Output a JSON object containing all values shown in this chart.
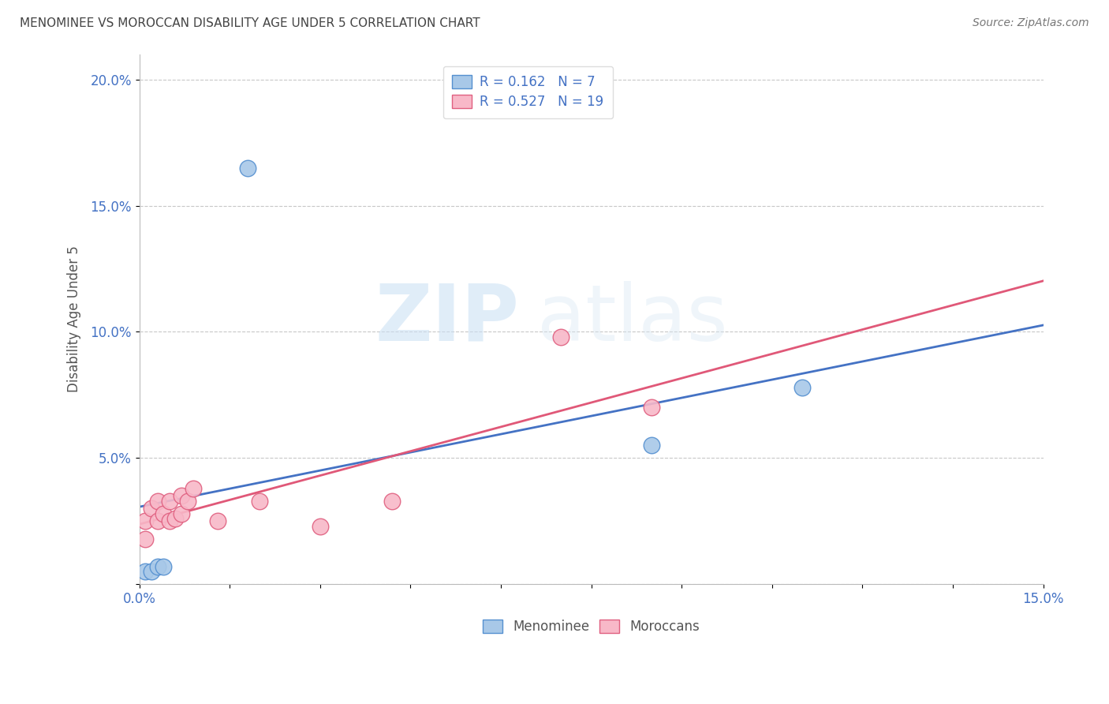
{
  "title": "MENOMINEE VS MOROCCAN DISABILITY AGE UNDER 5 CORRELATION CHART",
  "source": "Source: ZipAtlas.com",
  "ylabel": "Disability Age Under 5",
  "xlim": [
    0.0,
    0.15
  ],
  "ylim": [
    0.0,
    0.21
  ],
  "yticks": [
    0.0,
    0.05,
    0.1,
    0.15,
    0.2
  ],
  "ytick_labels": [
    "",
    "5.0%",
    "10.0%",
    "15.0%",
    "20.0%"
  ],
  "xticks": [
    0.0,
    0.015,
    0.03,
    0.045,
    0.06,
    0.075,
    0.09,
    0.105,
    0.12,
    0.135,
    0.15
  ],
  "xtick_labels": [
    "0.0%",
    "",
    "",
    "",
    "",
    "",
    "",
    "",
    "",
    "",
    "15.0%"
  ],
  "menominee_x": [
    0.001,
    0.002,
    0.003,
    0.004,
    0.018,
    0.085,
    0.11
  ],
  "menominee_y": [
    0.005,
    0.005,
    0.007,
    0.007,
    0.165,
    0.055,
    0.078
  ],
  "moroccan_x": [
    0.001,
    0.001,
    0.002,
    0.003,
    0.003,
    0.004,
    0.005,
    0.005,
    0.006,
    0.007,
    0.007,
    0.008,
    0.009,
    0.013,
    0.02,
    0.03,
    0.042,
    0.07,
    0.085
  ],
  "moroccan_y": [
    0.018,
    0.025,
    0.03,
    0.025,
    0.033,
    0.028,
    0.025,
    0.033,
    0.026,
    0.028,
    0.035,
    0.033,
    0.038,
    0.025,
    0.033,
    0.023,
    0.033,
    0.098,
    0.07
  ],
  "menominee_color": "#a8c8e8",
  "moroccan_color": "#f8b8c8",
  "menominee_edge_color": "#5590d0",
  "moroccan_edge_color": "#e06080",
  "menominee_line_color": "#4472c4",
  "moroccan_line_color": "#e05878",
  "menominee_R": 0.162,
  "menominee_N": 7,
  "moroccan_R": 0.527,
  "moroccan_N": 19,
  "watermark_zip": "ZIP",
  "watermark_atlas": "atlas",
  "background_color": "#ffffff",
  "grid_color": "#c8c8c8",
  "legend_text_color": "#4472c4"
}
